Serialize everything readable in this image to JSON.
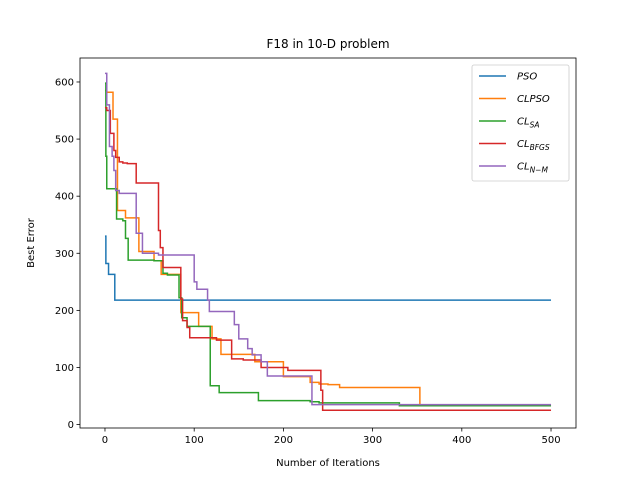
{
  "chart_data": {
    "type": "line",
    "title": "F18 in 10-D problem",
    "xlabel": "Number of Iterations",
    "ylabel": "Best Error",
    "xlim": [
      -28,
      528
    ],
    "ylim": [
      -6,
      642
    ],
    "xticks": [
      0,
      100,
      200,
      300,
      400,
      500
    ],
    "yticks": [
      0,
      100,
      200,
      300,
      400,
      500,
      600
    ],
    "grid": false,
    "legend_position": "top-right",
    "series": [
      {
        "name": "PSO",
        "legend": {
          "base": "PSO",
          "sub": ""
        },
        "color": "#1f77b4",
        "x": [
          0,
          1,
          1,
          4,
          4,
          8,
          8,
          11,
          11,
          500
        ],
        "y": [
          330,
          330,
          282,
          282,
          263,
          263,
          263,
          263,
          218,
          218
        ]
      },
      {
        "name": "CLPSO",
        "legend": {
          "base": "CLPSO",
          "sub": ""
        },
        "color": "#ff7f0e",
        "x": [
          0,
          2,
          2,
          9,
          9,
          14,
          14,
          19,
          19,
          23,
          23,
          28,
          28,
          38,
          38,
          45,
          45,
          55,
          55,
          63,
          63,
          72,
          72,
          85,
          85,
          105,
          105,
          120,
          120,
          130,
          130,
          140,
          140,
          168,
          168,
          200,
          200,
          230,
          230,
          240,
          240,
          250,
          250,
          263,
          263,
          270,
          270,
          300,
          300,
          353,
          353,
          500
        ],
        "y": [
          585,
          585,
          582,
          582,
          535,
          535,
          375,
          375,
          375,
          375,
          362,
          362,
          362,
          362,
          303,
          303,
          303,
          303,
          287,
          287,
          263,
          263,
          263,
          263,
          196,
          196,
          172,
          172,
          150,
          150,
          123,
          123,
          123,
          123,
          110,
          110,
          84,
          84,
          74,
          74,
          71,
          71,
          70,
          70,
          65,
          65,
          65,
          65,
          65,
          65,
          33,
          33
        ]
      },
      {
        "name": "CL_SA",
        "legend": {
          "base": "CL",
          "sub": "SA"
        },
        "color": "#2ca02c",
        "x": [
          0,
          1,
          1,
          2,
          2,
          7,
          7,
          13,
          13,
          20,
          20,
          23,
          23,
          26,
          26,
          55,
          55,
          65,
          65,
          70,
          70,
          75,
          75,
          83,
          83,
          86,
          86,
          92,
          92,
          118,
          118,
          128,
          128,
          130,
          130,
          172,
          172,
          180,
          180,
          230,
          230,
          240,
          240,
          330,
          330,
          500
        ],
        "y": [
          598,
          598,
          470,
          470,
          413,
          413,
          413,
          413,
          360,
          360,
          357,
          357,
          326,
          326,
          288,
          288,
          287,
          287,
          265,
          265,
          262,
          262,
          262,
          262,
          222,
          222,
          187,
          187,
          172,
          172,
          68,
          68,
          56,
          56,
          56,
          56,
          42,
          42,
          42,
          42,
          40,
          40,
          38,
          38,
          33,
          33
        ]
      },
      {
        "name": "CL_BFGS",
        "legend": {
          "base": "CL",
          "sub": "BFGS"
        },
        "color": "#d62728",
        "x": [
          0,
          2,
          2,
          6,
          6,
          10,
          10,
          12,
          12,
          16,
          16,
          20,
          20,
          25,
          25,
          35,
          35,
          60,
          60,
          62,
          62,
          65,
          65,
          85,
          85,
          87,
          87,
          92,
          92,
          95,
          95,
          110,
          110,
          125,
          125,
          128,
          128,
          142,
          142,
          155,
          155,
          175,
          175,
          205,
          205,
          242,
          242,
          244,
          244,
          500
        ],
        "y": [
          555,
          555,
          550,
          550,
          510,
          510,
          480,
          480,
          468,
          468,
          460,
          460,
          458,
          458,
          457,
          457,
          423,
          423,
          340,
          340,
          310,
          310,
          275,
          275,
          220,
          220,
          182,
          182,
          170,
          170,
          152,
          152,
          152,
          152,
          148,
          148,
          148,
          148,
          115,
          115,
          113,
          113,
          100,
          100,
          95,
          95,
          60,
          60,
          25,
          25
        ]
      },
      {
        "name": "CL_{N-M}",
        "legend": {
          "base": "CL",
          "sub": "N−M"
        },
        "color": "#9467bd",
        "x": [
          0,
          2,
          2,
          5,
          5,
          8,
          8,
          10,
          10,
          12,
          12,
          16,
          16,
          35,
          35,
          38,
          38,
          42,
          42,
          60,
          60,
          100,
          100,
          103,
          103,
          107,
          107,
          115,
          115,
          117,
          117,
          130,
          130,
          145,
          145,
          150,
          150,
          160,
          160,
          165,
          165,
          175,
          175,
          182,
          182,
          215,
          215,
          232,
          232,
          235,
          235,
          500
        ],
        "y": [
          615,
          615,
          560,
          560,
          487,
          487,
          470,
          470,
          445,
          445,
          410,
          410,
          405,
          405,
          335,
          335,
          335,
          335,
          300,
          300,
          297,
          297,
          250,
          250,
          237,
          237,
          237,
          237,
          218,
          218,
          198,
          198,
          198,
          198,
          175,
          175,
          150,
          150,
          133,
          133,
          122,
          122,
          110,
          110,
          85,
          85,
          85,
          85,
          35,
          35,
          35,
          35
        ]
      }
    ]
  }
}
